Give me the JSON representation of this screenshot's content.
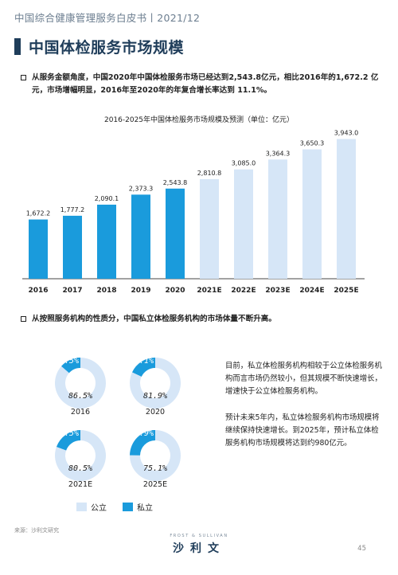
{
  "header": {
    "text": "中国综合健康管理服务白皮书丨2021/12"
  },
  "section": {
    "title": "中国体检服务市场规模"
  },
  "bullets": [
    {
      "text": "从服务金额角度，中国2020年中国体检服务市场已经达到2,543.8亿元，相比2016年的1,672.2 亿元，市场增幅明显，2016年至2020年的年复合增长率达到 11.1%。"
    },
    {
      "text": "从按照服务机构的性质分，中国私立体检服务机构的市场体量不断升高。"
    }
  ],
  "colors": {
    "actual": "#1a9bdc",
    "forecast": "#d6e6f7",
    "primary": "#1f3d5a",
    "public": "#d6e6f7",
    "private": "#1a9bdc"
  },
  "chart_data": [
    {
      "type": "bar",
      "title": "2016-2025年中国体检服务市场规模及预测（单位：亿元）",
      "categories": [
        "2016",
        "2017",
        "2018",
        "2019",
        "2020",
        "2021E",
        "2022E",
        "2023E",
        "2024E",
        "2025E"
      ],
      "values": [
        1672.2,
        1777.2,
        2090.1,
        2373.3,
        2543.8,
        2810.8,
        3085.0,
        3364.3,
        3650.3,
        3943.0
      ],
      "value_labels": [
        "1,672.2",
        "1,777.2",
        "2,090.1",
        "2,373.3",
        "2,543.8",
        "2,810.8",
        "3,085.0",
        "3,364.3",
        "3,650.3",
        "3,943.0"
      ],
      "forecast_flags": [
        false,
        false,
        false,
        false,
        false,
        true,
        true,
        true,
        true,
        true
      ],
      "ylim": [
        0,
        4000
      ],
      "grid": false
    },
    {
      "type": "pie",
      "subtype": "donut",
      "legend": [
        "公立",
        "私立"
      ],
      "legend_position": "bottom",
      "items": [
        {
          "label": "2016",
          "public": 86.5,
          "private": 13.5,
          "public_label": "86.5%",
          "private_label": "13.5%"
        },
        {
          "label": "2020",
          "public": 81.9,
          "private": 18.1,
          "public_label": "81.9%",
          "private_label": "18.1%"
        },
        {
          "label": "2021E",
          "public": 80.5,
          "private": 19.5,
          "public_label": "80.5%",
          "private_label": "19.5%"
        },
        {
          "label": "2025E",
          "public": 75.1,
          "private": 24.9,
          "public_label": "75.1%",
          "private_label": "24.9%"
        }
      ]
    }
  ],
  "desc": [
    "目前，私立体检服务机构相较于公立体检服务机构而言市场仍然较小，但其规模不断快速增长，增速快于公立体检服务机构。",
    "预计未来5年内，私立体检服务机构市场规模将继续保持快速增长。到2025年，预计私立体检服务机构市场规模将达到约980亿元。"
  ],
  "source": "来源：沙利文研究",
  "logo": {
    "small": "FROST & SULLIVAN",
    "main": "沙利文"
  },
  "page_number": "45"
}
